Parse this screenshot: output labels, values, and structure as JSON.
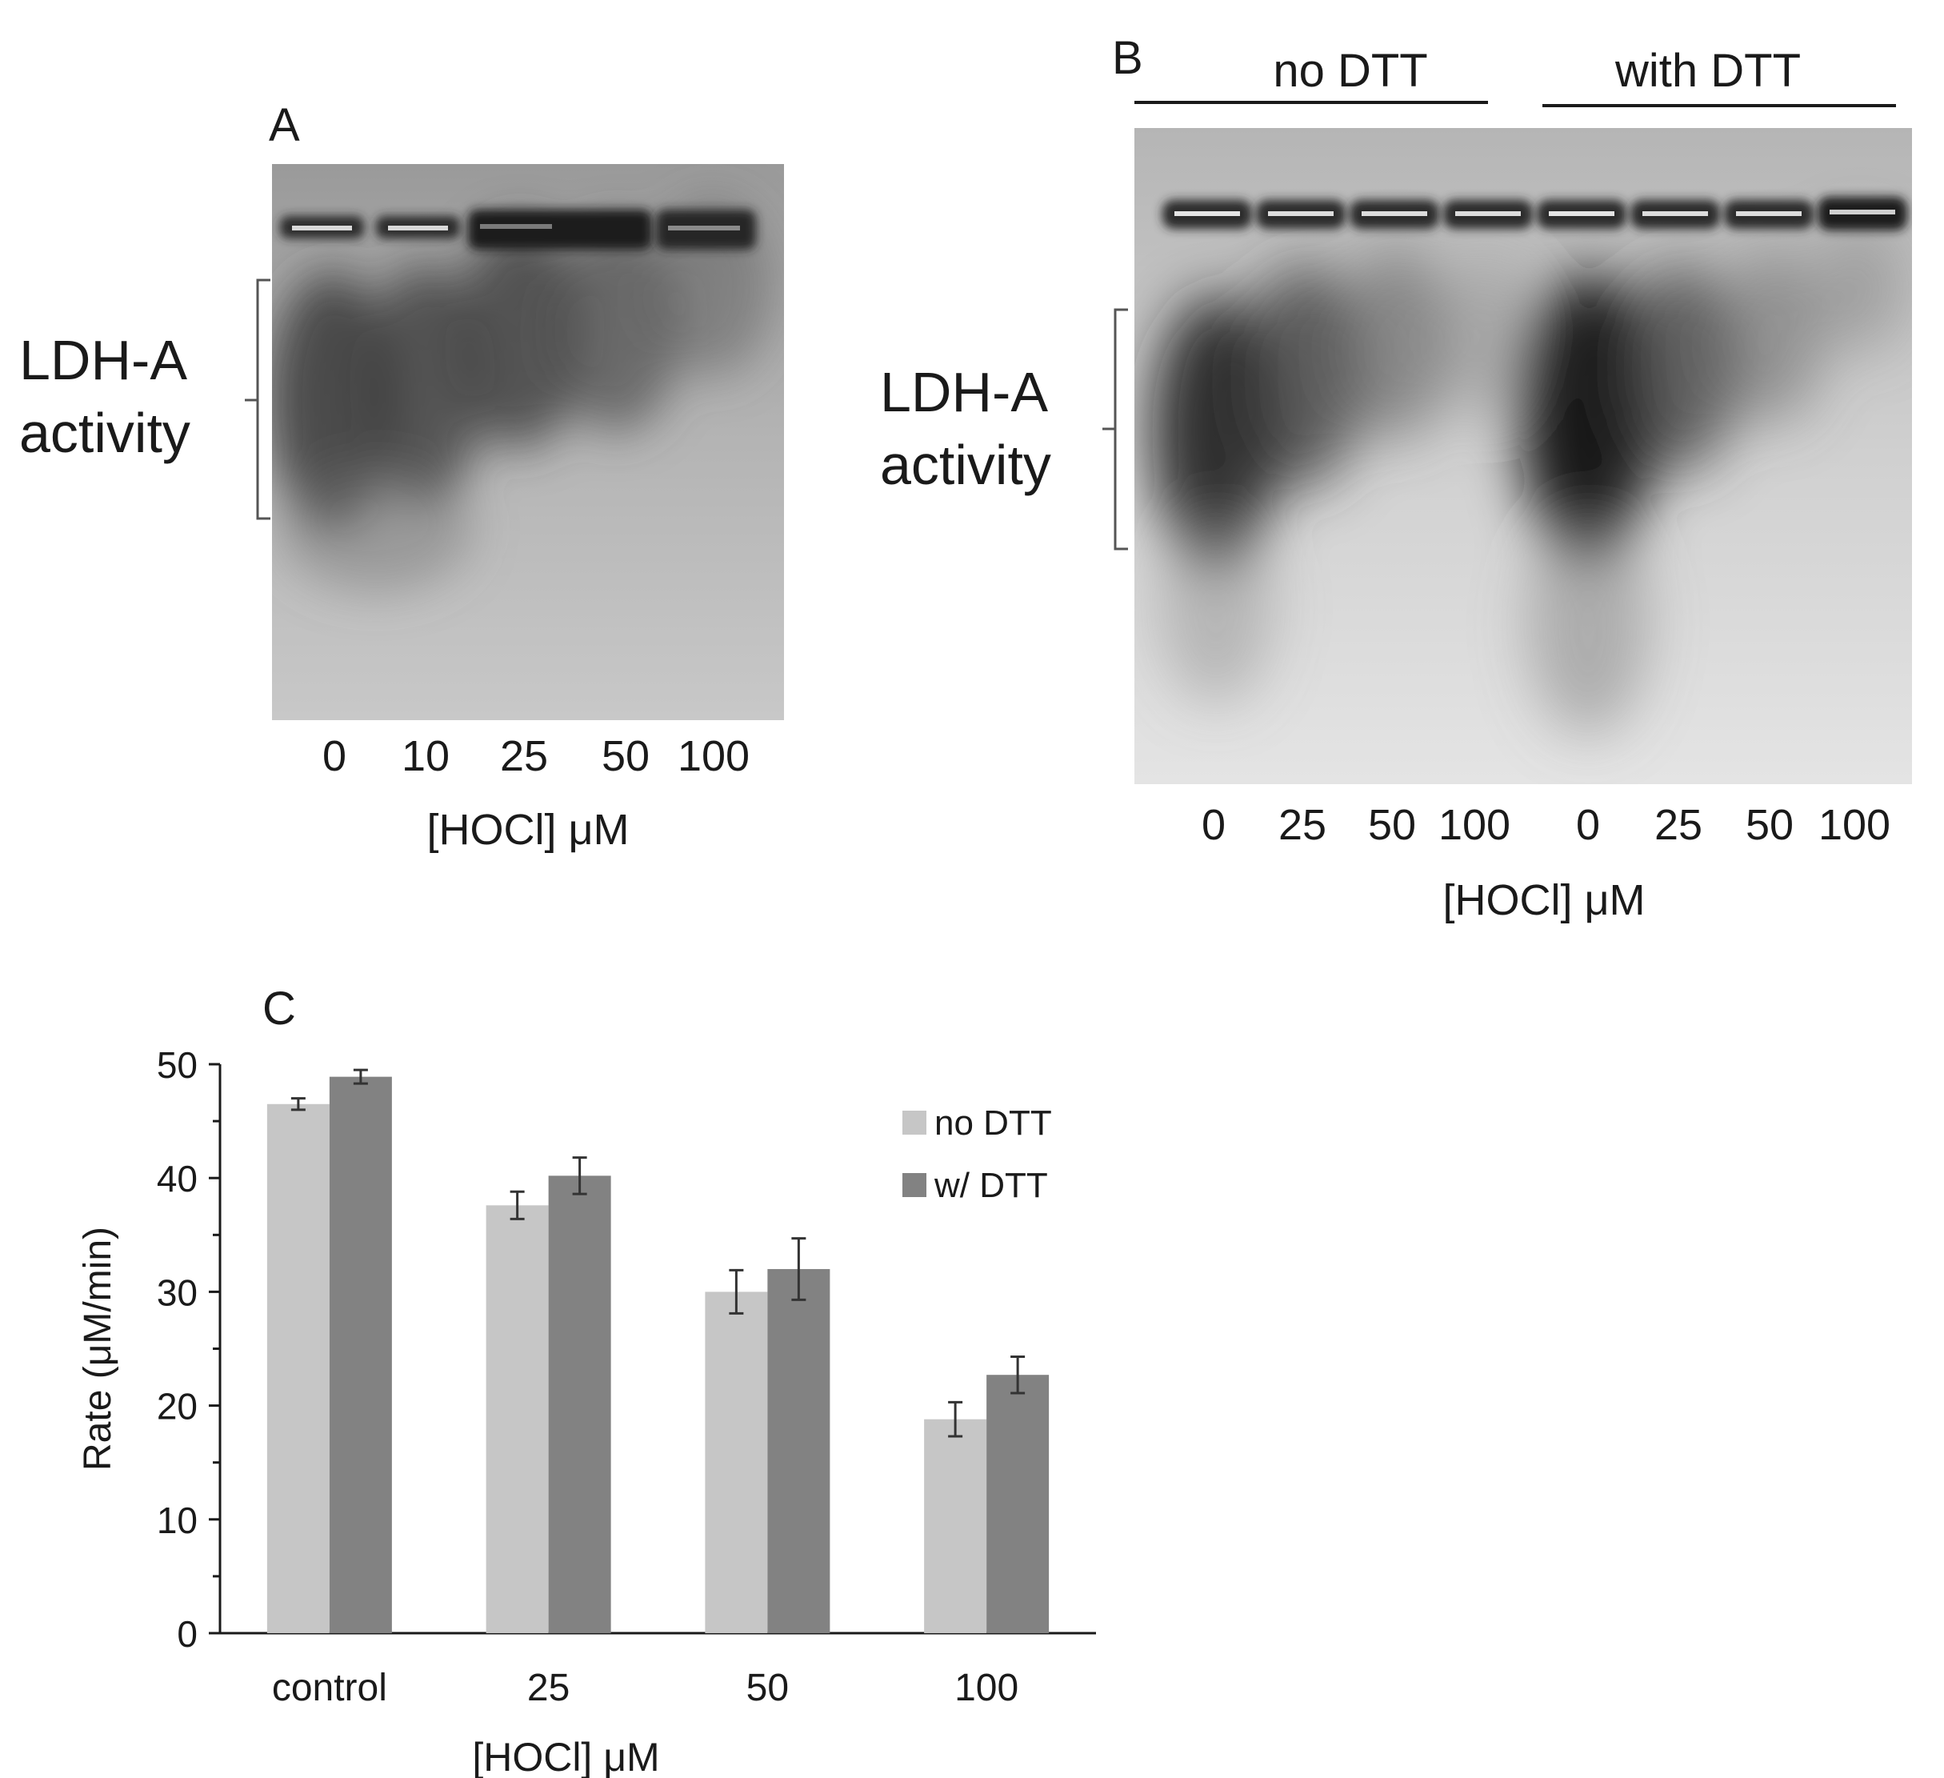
{
  "panel_a": {
    "letter": "A",
    "band_label_line1": "LDH-A",
    "band_label_line2": "activity",
    "lanes": [
      "0",
      "10",
      "25",
      "50",
      "100"
    ],
    "axis_title": "[HOCl] μM"
  },
  "panel_b": {
    "letter": "B",
    "group1": "no DTT",
    "group2": "with DTT",
    "band_label_line1": "LDH-A",
    "band_label_line2": "activity",
    "lanes": [
      "0",
      "25",
      "50",
      "100",
      "0",
      "25",
      "50",
      "100"
    ],
    "axis_title": "[HOCl] μM"
  },
  "panel_c": {
    "letter": "C"
  },
  "chart_data": {
    "type": "bar",
    "title": "",
    "categories": [
      "control",
      "25",
      "50",
      "100"
    ],
    "xlabel": "[HOCl] μM",
    "ylabel": "Rate (μM/min)",
    "ylim": [
      0,
      50
    ],
    "yticks": [
      0,
      10,
      20,
      30,
      40,
      50
    ],
    "grid": false,
    "legend_position": "right",
    "series": [
      {
        "name": "no DTT",
        "color": "#c6c6c6",
        "values": [
          46.5,
          37.6,
          30.0,
          18.8
        ],
        "errors": [
          0.5,
          1.2,
          1.9,
          1.5
        ]
      },
      {
        "name": "w/ DTT",
        "color": "#828282",
        "values": [
          48.9,
          40.2,
          32.0,
          22.7
        ],
        "errors": [
          0.6,
          1.6,
          2.7,
          1.6
        ]
      }
    ]
  }
}
